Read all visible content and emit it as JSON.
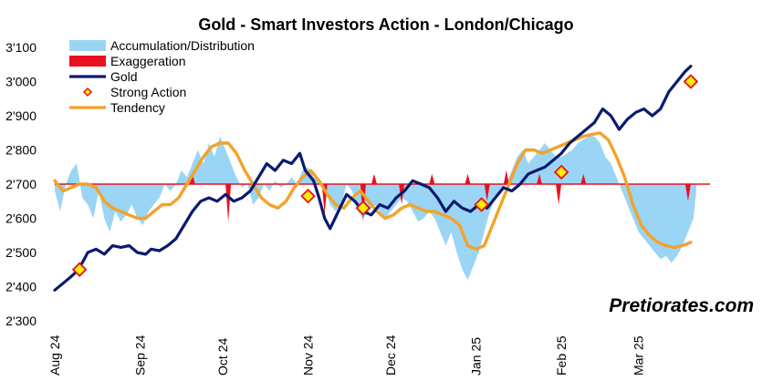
{
  "chart_data": {
    "type": "line",
    "title": "Gold - Smart Investors Action - London/Chicago",
    "watermark": "Pretiorates.com",
    "ylim": [
      2300,
      3100
    ],
    "y_ticks": [
      {
        "value": 3100,
        "label": "3'100"
      },
      {
        "value": 3000,
        "label": "3'000"
      },
      {
        "value": 2900,
        "label": "2'900"
      },
      {
        "value": 2800,
        "label": "2'800"
      },
      {
        "value": 2700,
        "label": "2'700"
      },
      {
        "value": 2600,
        "label": "2'600"
      },
      {
        "value": 2500,
        "label": "2'500"
      },
      {
        "value": 2400,
        "label": "2'400"
      },
      {
        "value": 2300,
        "label": "2'300"
      }
    ],
    "x_range_days": [
      0,
      236
    ],
    "x_ticks": [
      {
        "day": 0,
        "label": "Aug 24"
      },
      {
        "day": 31,
        "label": "Sep 24"
      },
      {
        "day": 61,
        "label": "Oct 24"
      },
      {
        "day": 92,
        "label": "Nov 24"
      },
      {
        "day": 122,
        "label": "Dec 24"
      },
      {
        "day": 153,
        "label": "Jan 25"
      },
      {
        "day": 184,
        "label": "Feb 25"
      },
      {
        "day": 212,
        "label": "Mar 25"
      }
    ],
    "baseline": 2700,
    "legend": [
      {
        "label": "Accumulation/Distribution",
        "kind": "area",
        "color": "#9bd5f5"
      },
      {
        "label": "Exaggeration",
        "kind": "area",
        "color": "#e8101e"
      },
      {
        "label": "Gold",
        "kind": "line",
        "color": "#0b1a6e"
      },
      {
        "label": "Strong Action",
        "kind": "marker",
        "color": "#ffee00"
      },
      {
        "label": "Tendency",
        "kind": "line",
        "color": "#f3a22a"
      }
    ],
    "series": [
      {
        "name": "Gold",
        "color": "#0b1a6e",
        "points": [
          [
            0,
            2390
          ],
          [
            3,
            2410
          ],
          [
            6,
            2430
          ],
          [
            8,
            2445
          ],
          [
            10,
            2470
          ],
          [
            12,
            2500
          ],
          [
            15,
            2510
          ],
          [
            18,
            2495
          ],
          [
            21,
            2520
          ],
          [
            24,
            2515
          ],
          [
            27,
            2520
          ],
          [
            30,
            2500
          ],
          [
            33,
            2495
          ],
          [
            35,
            2510
          ],
          [
            38,
            2505
          ],
          [
            41,
            2520
          ],
          [
            44,
            2540
          ],
          [
            47,
            2580
          ],
          [
            50,
            2620
          ],
          [
            53,
            2650
          ],
          [
            56,
            2660
          ],
          [
            59,
            2650
          ],
          [
            62,
            2670
          ],
          [
            65,
            2650
          ],
          [
            68,
            2660
          ],
          [
            71,
            2680
          ],
          [
            74,
            2720
          ],
          [
            77,
            2760
          ],
          [
            80,
            2740
          ],
          [
            83,
            2770
          ],
          [
            86,
            2760
          ],
          [
            89,
            2790
          ],
          [
            91,
            2740
          ],
          [
            94,
            2710
          ],
          [
            96,
            2660
          ],
          [
            98,
            2600
          ],
          [
            100,
            2570
          ],
          [
            103,
            2620
          ],
          [
            106,
            2670
          ],
          [
            109,
            2650
          ],
          [
            112,
            2620
          ],
          [
            115,
            2610
          ],
          [
            118,
            2640
          ],
          [
            121,
            2630
          ],
          [
            124,
            2660
          ],
          [
            127,
            2680
          ],
          [
            130,
            2710
          ],
          [
            133,
            2700
          ],
          [
            136,
            2690
          ],
          [
            139,
            2660
          ],
          [
            142,
            2620
          ],
          [
            145,
            2650
          ],
          [
            148,
            2630
          ],
          [
            151,
            2620
          ],
          [
            154,
            2640
          ],
          [
            157,
            2630
          ],
          [
            160,
            2660
          ],
          [
            163,
            2690
          ],
          [
            166,
            2680
          ],
          [
            169,
            2700
          ],
          [
            172,
            2730
          ],
          [
            175,
            2740
          ],
          [
            178,
            2750
          ],
          [
            181,
            2770
          ],
          [
            184,
            2790
          ],
          [
            187,
            2820
          ],
          [
            190,
            2840
          ],
          [
            193,
            2860
          ],
          [
            196,
            2880
          ],
          [
            199,
            2920
          ],
          [
            202,
            2900
          ],
          [
            205,
            2860
          ],
          [
            208,
            2890
          ],
          [
            211,
            2910
          ],
          [
            214,
            2920
          ],
          [
            217,
            2900
          ],
          [
            220,
            2920
          ],
          [
            223,
            2970
          ],
          [
            226,
            3000
          ],
          [
            229,
            3030
          ],
          [
            231,
            3045
          ]
        ]
      },
      {
        "name": "Tendency",
        "color": "#f3a22a",
        "points": [
          [
            0,
            2710
          ],
          [
            3,
            2680
          ],
          [
            6,
            2690
          ],
          [
            9,
            2700
          ],
          [
            12,
            2700
          ],
          [
            15,
            2690
          ],
          [
            18,
            2650
          ],
          [
            21,
            2630
          ],
          [
            24,
            2620
          ],
          [
            27,
            2610
          ],
          [
            30,
            2600
          ],
          [
            33,
            2600
          ],
          [
            36,
            2620
          ],
          [
            39,
            2640
          ],
          [
            42,
            2640
          ],
          [
            45,
            2660
          ],
          [
            48,
            2700
          ],
          [
            51,
            2740
          ],
          [
            54,
            2780
          ],
          [
            57,
            2810
          ],
          [
            60,
            2820
          ],
          [
            63,
            2820
          ],
          [
            66,
            2790
          ],
          [
            69,
            2740
          ],
          [
            72,
            2700
          ],
          [
            75,
            2660
          ],
          [
            78,
            2640
          ],
          [
            81,
            2630
          ],
          [
            84,
            2650
          ],
          [
            87,
            2690
          ],
          [
            90,
            2720
          ],
          [
            93,
            2740
          ],
          [
            96,
            2710
          ],
          [
            99,
            2670
          ],
          [
            102,
            2640
          ],
          [
            105,
            2630
          ],
          [
            108,
            2660
          ],
          [
            111,
            2680
          ],
          [
            114,
            2650
          ],
          [
            117,
            2620
          ],
          [
            120,
            2600
          ],
          [
            123,
            2610
          ],
          [
            126,
            2630
          ],
          [
            129,
            2640
          ],
          [
            132,
            2630
          ],
          [
            135,
            2620
          ],
          [
            138,
            2620
          ],
          [
            141,
            2610
          ],
          [
            144,
            2600
          ],
          [
            147,
            2580
          ],
          [
            150,
            2520
          ],
          [
            153,
            2510
          ],
          [
            156,
            2520
          ],
          [
            159,
            2580
          ],
          [
            162,
            2640
          ],
          [
            165,
            2700
          ],
          [
            168,
            2760
          ],
          [
            171,
            2800
          ],
          [
            174,
            2800
          ],
          [
            177,
            2790
          ],
          [
            180,
            2800
          ],
          [
            183,
            2810
          ],
          [
            186,
            2820
          ],
          [
            189,
            2830
          ],
          [
            192,
            2840
          ],
          [
            195,
            2845
          ],
          [
            198,
            2850
          ],
          [
            201,
            2830
          ],
          [
            204,
            2780
          ],
          [
            207,
            2720
          ],
          [
            210,
            2640
          ],
          [
            213,
            2580
          ],
          [
            216,
            2550
          ],
          [
            219,
            2530
          ],
          [
            222,
            2520
          ],
          [
            225,
            2515
          ],
          [
            228,
            2520
          ],
          [
            231,
            2530
          ]
        ]
      },
      {
        "name": "Accumulation/Distribution",
        "color": "#9bd5f5",
        "points": [
          [
            0,
            2680
          ],
          [
            2,
            2620
          ],
          [
            4,
            2700
          ],
          [
            6,
            2740
          ],
          [
            8,
            2760
          ],
          [
            10,
            2660
          ],
          [
            12,
            2640
          ],
          [
            14,
            2600
          ],
          [
            16,
            2680
          ],
          [
            18,
            2600
          ],
          [
            20,
            2560
          ],
          [
            22,
            2620
          ],
          [
            24,
            2590
          ],
          [
            26,
            2610
          ],
          [
            28,
            2640
          ],
          [
            30,
            2600
          ],
          [
            32,
            2580
          ],
          [
            34,
            2620
          ],
          [
            36,
            2640
          ],
          [
            38,
            2660
          ],
          [
            40,
            2700
          ],
          [
            42,
            2680
          ],
          [
            44,
            2700
          ],
          [
            46,
            2740
          ],
          [
            48,
            2720
          ],
          [
            50,
            2760
          ],
          [
            52,
            2800
          ],
          [
            54,
            2760
          ],
          [
            56,
            2820
          ],
          [
            58,
            2780
          ],
          [
            60,
            2840
          ],
          [
            62,
            2800
          ],
          [
            64,
            2760
          ],
          [
            66,
            2720
          ],
          [
            68,
            2690
          ],
          [
            70,
            2700
          ],
          [
            72,
            2640
          ],
          [
            74,
            2660
          ],
          [
            76,
            2700
          ],
          [
            78,
            2680
          ],
          [
            80,
            2710
          ],
          [
            82,
            2690
          ],
          [
            84,
            2700
          ],
          [
            86,
            2720
          ],
          [
            88,
            2700
          ],
          [
            90,
            2740
          ],
          [
            92,
            2750
          ],
          [
            94,
            2720
          ],
          [
            96,
            2710
          ],
          [
            98,
            2690
          ],
          [
            100,
            2640
          ],
          [
            102,
            2620
          ],
          [
            104,
            2640
          ],
          [
            106,
            2700
          ],
          [
            108,
            2680
          ],
          [
            110,
            2620
          ],
          [
            112,
            2600
          ],
          [
            114,
            2620
          ],
          [
            116,
            2640
          ],
          [
            118,
            2620
          ],
          [
            120,
            2600
          ],
          [
            122,
            2620
          ],
          [
            124,
            2640
          ],
          [
            126,
            2660
          ],
          [
            128,
            2650
          ],
          [
            130,
            2620
          ],
          [
            132,
            2590
          ],
          [
            134,
            2600
          ],
          [
            136,
            2620
          ],
          [
            138,
            2600
          ],
          [
            140,
            2560
          ],
          [
            142,
            2520
          ],
          [
            144,
            2560
          ],
          [
            146,
            2500
          ],
          [
            148,
            2450
          ],
          [
            150,
            2420
          ],
          [
            152,
            2460
          ],
          [
            154,
            2500
          ],
          [
            156,
            2560
          ],
          [
            158,
            2620
          ],
          [
            160,
            2660
          ],
          [
            162,
            2680
          ],
          [
            164,
            2700
          ],
          [
            166,
            2740
          ],
          [
            168,
            2780
          ],
          [
            170,
            2800
          ],
          [
            172,
            2760
          ],
          [
            174,
            2780
          ],
          [
            176,
            2800
          ],
          [
            178,
            2820
          ],
          [
            180,
            2800
          ],
          [
            182,
            2780
          ],
          [
            184,
            2780
          ],
          [
            186,
            2790
          ],
          [
            188,
            2800
          ],
          [
            190,
            2820
          ],
          [
            192,
            2830
          ],
          [
            194,
            2840
          ],
          [
            196,
            2840
          ],
          [
            198,
            2820
          ],
          [
            200,
            2780
          ],
          [
            202,
            2760
          ],
          [
            204,
            2720
          ],
          [
            206,
            2680
          ],
          [
            208,
            2640
          ],
          [
            210,
            2600
          ],
          [
            212,
            2560
          ],
          [
            214,
            2540
          ],
          [
            216,
            2520
          ],
          [
            218,
            2500
          ],
          [
            220,
            2480
          ],
          [
            222,
            2490
          ],
          [
            224,
            2470
          ],
          [
            226,
            2490
          ],
          [
            228,
            2520
          ],
          [
            230,
            2560
          ],
          [
            232,
            2600
          ],
          [
            233,
            2680
          ]
        ]
      },
      {
        "name": "Exaggeration",
        "color": "#e8101e",
        "spikes": [
          [
            50,
            2730
          ],
          [
            63,
            2590
          ],
          [
            98,
            2610
          ],
          [
            112,
            2590
          ],
          [
            116,
            2730
          ],
          [
            126,
            2640
          ],
          [
            137,
            2730
          ],
          [
            150,
            2730
          ],
          [
            157,
            2650
          ],
          [
            164,
            2740
          ],
          [
            176,
            2730
          ],
          [
            183,
            2640
          ],
          [
            192,
            2730
          ],
          [
            230,
            2650
          ]
        ]
      }
    ],
    "strong_action": [
      [
        9,
        2450
      ],
      [
        92,
        2665
      ],
      [
        112,
        2630
      ],
      [
        155,
        2640
      ],
      [
        184,
        2735
      ],
      [
        231,
        3000
      ]
    ]
  }
}
